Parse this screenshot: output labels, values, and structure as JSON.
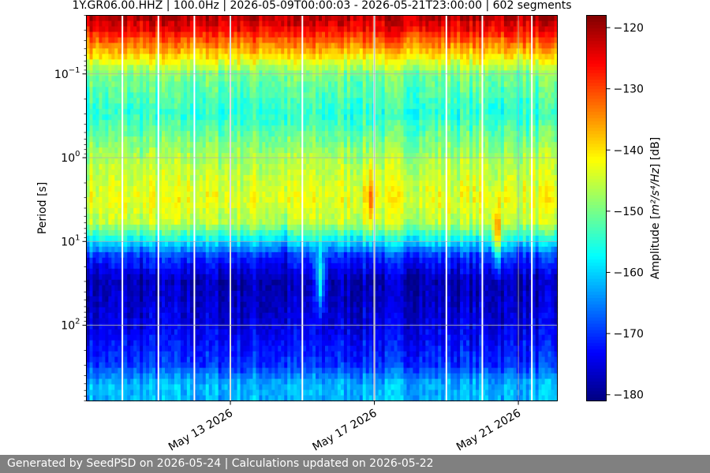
{
  "chart_data": {
    "type": "heatmap",
    "title": "1Y.GR06.00.HHZ | 100.0Hz | 2026-05-09T00:00:03 - 2026-05-21T23:00:00 | 602 segments",
    "ylabel": "Period [s]",
    "y_scale": "log",
    "y_inverted": true,
    "ylim": [
      0.02,
      800
    ],
    "y_ticks": [
      {
        "value": 0.1,
        "mant": "10",
        "exp": "−1"
      },
      {
        "value": 1,
        "mant": "10",
        "exp": "0"
      },
      {
        "value": 10,
        "mant": "10",
        "exp": "1"
      },
      {
        "value": 100,
        "mant": "10",
        "exp": "2"
      }
    ],
    "x_axis": "date",
    "xlim": [
      "2026-05-09T00:00:00",
      "2026-05-22T02:00:00"
    ],
    "x_ticks": [
      {
        "value": "2026-05-13",
        "label": "May 13 2026"
      },
      {
        "value": "2026-05-17",
        "label": "May 17 2026"
      },
      {
        "value": "2026-05-21",
        "label": "May 21 2026"
      }
    ],
    "grid": true,
    "colorbar": {
      "label_prefix": "Amplitude [",
      "label_math": "m²/s⁴/Hz",
      "label_suffix": "] [dB]",
      "range": [
        -181,
        -118
      ],
      "ticks": [
        "−120",
        "−130",
        "−140",
        "−150",
        "−160",
        "−170",
        "−180"
      ],
      "tick_values": [
        -120,
        -130,
        -140,
        -150,
        -160,
        -170,
        -180
      ],
      "colormap": "jet"
    },
    "gaps": [
      "2026-05-10T00:00:00",
      "2026-05-11T00:00:00",
      "2026-05-12T00:00:00",
      "2026-05-13T00:00:00",
      "2026-05-15T00:00:00",
      "2026-05-17T00:00:00",
      "2026-05-19T00:00:00",
      "2026-05-20T00:00:00",
      "2026-05-21T09:00:00"
    ],
    "profile": [
      {
        "period": 0.02,
        "db": -121
      },
      {
        "period": 0.03,
        "db": -126
      },
      {
        "period": 0.05,
        "db": -136
      },
      {
        "period": 0.1,
        "db": -150
      },
      {
        "period": 0.3,
        "db": -155
      },
      {
        "period": 1,
        "db": -147
      },
      {
        "period": 3,
        "db": -143
      },
      {
        "period": 6,
        "db": -146
      },
      {
        "period": 9,
        "db": -156
      },
      {
        "period": 15,
        "db": -170
      },
      {
        "period": 30,
        "db": -178
      },
      {
        "period": 100,
        "db": -175
      },
      {
        "period": 300,
        "db": -170
      },
      {
        "period": 500,
        "db": -162
      }
    ],
    "events": [
      {
        "time": "2026-05-14T12:00:00",
        "period": 10,
        "db": -6
      },
      {
        "time": "2026-05-15T12:00:00",
        "period": 30,
        "db": 20
      },
      {
        "time": "2026-05-16T22:00:00",
        "period": 3,
        "db": 10
      },
      {
        "time": "2026-05-20T10:00:00",
        "period": 10,
        "db": 18
      }
    ]
  },
  "footer": {
    "text": "Generated by SeedPSD on 2026-05-24 | Calculations updated on 2026-05-22"
  }
}
